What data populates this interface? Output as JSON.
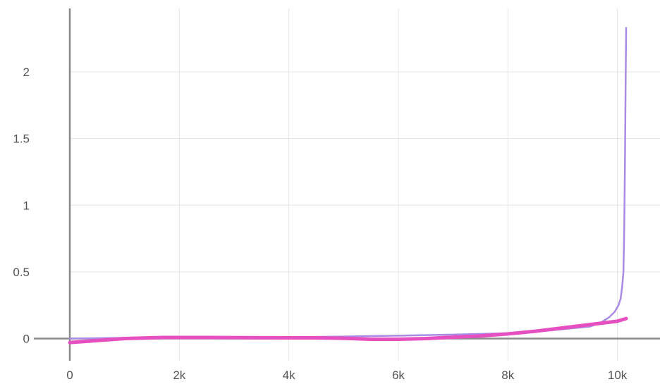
{
  "chart_data": {
    "type": "line",
    "title": "",
    "xlabel": "",
    "ylabel": "",
    "xlim": [
      0,
      10600
    ],
    "ylim": [
      -0.2,
      2.45
    ],
    "x_ticks": [
      {
        "value": 0,
        "label": "0"
      },
      {
        "value": 2000,
        "label": "2k"
      },
      {
        "value": 4000,
        "label": "4k"
      },
      {
        "value": 6000,
        "label": "6k"
      },
      {
        "value": 8000,
        "label": "8k"
      },
      {
        "value": 10000,
        "label": "10k"
      }
    ],
    "y_ticks": [
      {
        "value": 0,
        "label": "0"
      },
      {
        "value": 0.5,
        "label": "0.5"
      },
      {
        "value": 1,
        "label": "1"
      },
      {
        "value": 1.5,
        "label": "1.5"
      },
      {
        "value": 2,
        "label": "2"
      }
    ],
    "grid": true,
    "legend": "none",
    "series": [
      {
        "color": "#a98be6",
        "points": [
          [
            0,
            0.0
          ],
          [
            1000,
            0.005
          ],
          [
            2000,
            0.007
          ],
          [
            3000,
            0.008
          ],
          [
            4000,
            0.01
          ],
          [
            5000,
            0.015
          ],
          [
            6000,
            0.022
          ],
          [
            7000,
            0.03
          ],
          [
            8000,
            0.04
          ],
          [
            8500,
            0.05
          ],
          [
            9000,
            0.07
          ],
          [
            9500,
            0.09
          ],
          [
            9700,
            0.12
          ],
          [
            9850,
            0.16
          ],
          [
            9950,
            0.2
          ],
          [
            10020,
            0.25
          ],
          [
            10060,
            0.3
          ],
          [
            10090,
            0.4
          ],
          [
            10110,
            0.5
          ],
          [
            10120,
            0.7
          ],
          [
            10130,
            1.0
          ],
          [
            10140,
            1.4
          ],
          [
            10150,
            1.9
          ],
          [
            10160,
            2.33
          ]
        ]
      },
      {
        "color": "#e64fc0",
        "points": [
          [
            0,
            -0.03
          ],
          [
            500,
            -0.015
          ],
          [
            1000,
            0.0
          ],
          [
            1700,
            0.008
          ],
          [
            2500,
            0.008
          ],
          [
            3500,
            0.006
          ],
          [
            4500,
            0.005
          ],
          [
            5000,
            0.002
          ],
          [
            5500,
            -0.005
          ],
          [
            6000,
            -0.005
          ],
          [
            6500,
            0.0
          ],
          [
            7000,
            0.01
          ],
          [
            7500,
            0.02
          ],
          [
            8000,
            0.035
          ],
          [
            8500,
            0.055
          ],
          [
            9000,
            0.08
          ],
          [
            9500,
            0.105
          ],
          [
            10000,
            0.13
          ],
          [
            10160,
            0.15
          ]
        ]
      }
    ]
  }
}
